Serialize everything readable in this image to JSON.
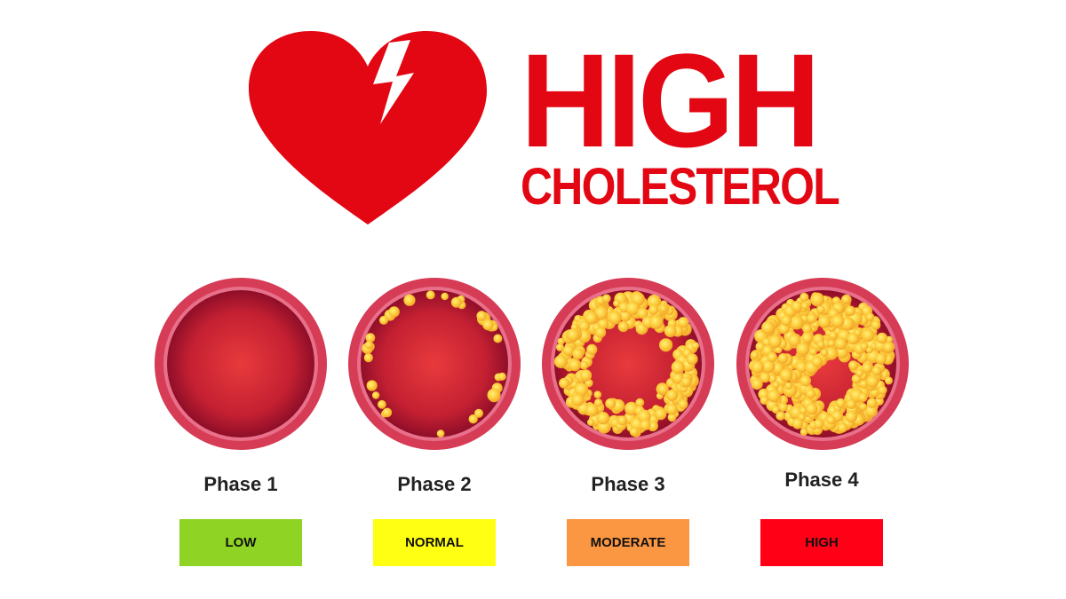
{
  "title": {
    "line1": "HIGH",
    "line2": "CHOLESTEROL"
  },
  "icon": "broken-heart-lightning-icon",
  "colors": {
    "brand_red": "#e30613",
    "vessel_wall": "#d63c55",
    "plaque": "#f9c93c"
  },
  "phases": [
    {
      "label": "Phase 1",
      "level": "LOW",
      "level_color": "#8fd424",
      "blockage": 0
    },
    {
      "label": "Phase 2",
      "level": "NORMAL",
      "level_color": "#ffff14",
      "blockage": 0.2
    },
    {
      "label": "Phase 3",
      "level": "MODERATE",
      "level_color": "#fb9642",
      "blockage": 0.6
    },
    {
      "label": "Phase 4",
      "level": "HIGH",
      "level_color": "#ff0016",
      "blockage": 0.9
    }
  ]
}
